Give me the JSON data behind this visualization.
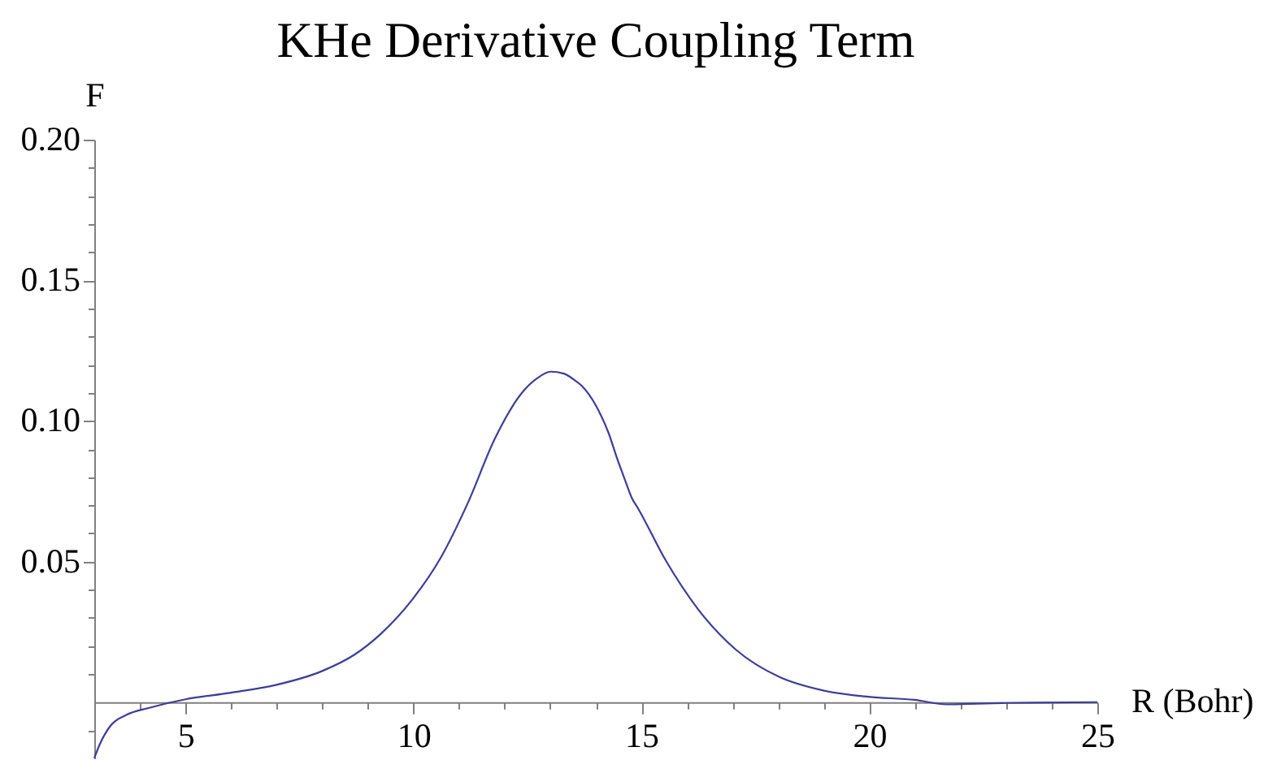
{
  "chart_data": {
    "type": "line",
    "title": "KHe Derivative Coupling Term",
    "xlabel": "R (Bohr)",
    "ylabel": "F",
    "x": [
      3.0,
      3.12,
      3.36,
      3.71,
      4.19,
      5.0,
      5.97,
      6.98,
      7.99,
      8.7,
      9.3,
      10.0,
      10.6,
      11.19,
      11.79,
      12.38,
      12.7,
      13.01,
      13.3,
      13.51,
      13.69,
      14.0,
      14.28,
      14.46,
      14.64,
      14.79,
      14.93,
      15.53,
      16.24,
      17.07,
      18.02,
      18.97,
      19.98,
      20.99,
      21.7,
      22.18,
      23.0,
      25.0
    ],
    "series": [
      {
        "color": "#3d3d99",
        "values": [
          -0.0199,
          -0.015,
          -0.0083,
          -0.0045,
          -0.0021,
          0.001,
          0.0033,
          0.0061,
          0.011,
          0.0168,
          0.0245,
          0.037,
          0.0514,
          0.0707,
          0.0938,
          0.11,
          0.115,
          0.1175,
          0.1168,
          0.1148,
          0.1125,
          0.1055,
          0.0957,
          0.087,
          0.079,
          0.0726,
          0.0688,
          0.0505,
          0.0331,
          0.0187,
          0.009,
          0.0042,
          0.0019,
          0.0008,
          -0.0008,
          -0.0006,
          -0.0003,
          0.0
        ]
      }
    ],
    "xlim": [
      3,
      25
    ],
    "ylim": [
      -0.02,
      0.2
    ],
    "xticks": [
      {
        "value": 4,
        "label": null
      },
      5,
      {
        "value": 6,
        "label": null
      },
      {
        "value": 7,
        "label": null
      },
      {
        "value": 8,
        "label": null
      },
      {
        "value": 9,
        "label": null
      },
      10,
      {
        "value": 11,
        "label": null
      },
      {
        "value": 12,
        "label": null
      },
      {
        "value": 13,
        "label": null
      },
      {
        "value": 14,
        "label": null
      },
      15,
      {
        "value": 16,
        "label": null
      },
      {
        "value": 17,
        "label": null
      },
      {
        "value": 18,
        "label": null
      },
      {
        "value": 19,
        "label": null
      },
      20,
      {
        "value": 21,
        "label": null
      },
      {
        "value": 22,
        "label": null
      },
      {
        "value": 23,
        "label": null
      },
      {
        "value": 24,
        "label": null
      },
      25
    ],
    "yticks": [
      {
        "value": -0.01,
        "label": null
      },
      {
        "value": 0.01,
        "label": null
      },
      {
        "value": 0.02,
        "label": null
      },
      {
        "value": 0.03,
        "label": null
      },
      {
        "value": 0.04,
        "label": null
      },
      {
        "value": 0.05,
        "label": "0.05"
      },
      {
        "value": 0.06,
        "label": null
      },
      {
        "value": 0.07,
        "label": null
      },
      {
        "value": 0.08,
        "label": null
      },
      {
        "value": 0.09,
        "label": null
      },
      {
        "value": 0.1,
        "label": "0.10"
      },
      {
        "value": 0.11,
        "label": null
      },
      {
        "value": 0.12,
        "label": null
      },
      {
        "value": 0.13,
        "label": null
      },
      {
        "value": 0.14,
        "label": null
      },
      {
        "value": 0.15,
        "label": "0.15"
      },
      {
        "value": 0.16,
        "label": null
      },
      {
        "value": 0.17,
        "label": null
      },
      {
        "value": 0.18,
        "label": null
      },
      {
        "value": 0.19,
        "label": null
      },
      {
        "value": 0.2,
        "label": "0.20"
      }
    ],
    "grid": false
  }
}
